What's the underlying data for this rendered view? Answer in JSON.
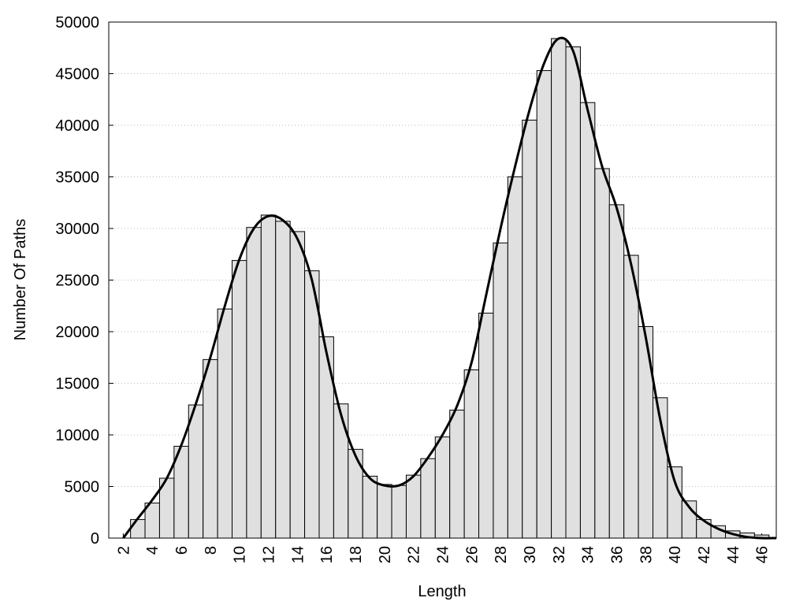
{
  "chart_data": {
    "type": "histogram",
    "xlabel": "Length",
    "ylabel": "Number Of Paths",
    "bins": [
      2.5,
      3.5,
      4.5,
      5.5,
      6.5,
      7.5,
      8.5,
      9.5,
      10.5,
      11.5,
      12.5,
      13.5,
      14.5,
      15.5,
      16.5,
      17.5,
      18.5,
      19.5,
      20.5,
      21.5,
      22.5,
      23.5,
      24.5,
      25.5,
      26.5,
      27.5,
      28.5,
      29.5,
      30.5,
      31.5,
      32.5,
      33.5,
      34.5,
      35.5,
      36.5,
      37.5,
      38.5,
      39.5,
      40.5,
      41.5,
      42.5,
      43.5,
      44.5,
      45.5,
      46.5
    ],
    "values": [
      1800,
      3400,
      5800,
      8900,
      12900,
      17300,
      22200,
      26900,
      30100,
      31300,
      30700,
      29700,
      25900,
      19500,
      13000,
      8600,
      6000,
      5200,
      5100,
      6100,
      7700,
      9800,
      12400,
      16300,
      21800,
      28600,
      35000,
      40500,
      45300,
      48400,
      47600,
      42200,
      35800,
      32300,
      27400,
      20500,
      13600,
      6900,
      3600,
      1800,
      1200,
      700,
      500,
      300
    ],
    "color": "#e0e0e0",
    "line": {
      "color": "#000000",
      "x": [
        2,
        3,
        4,
        5,
        6,
        7,
        8,
        9,
        10,
        11,
        12,
        13,
        14,
        15,
        16,
        17,
        18,
        19,
        20,
        21,
        22,
        23,
        24,
        25,
        26,
        27,
        28,
        29,
        30,
        31,
        32,
        33,
        34,
        35,
        36,
        37,
        38,
        39,
        40,
        41,
        42,
        43,
        44,
        45,
        46,
        47
      ],
      "values": [
        0,
        1900,
        3700,
        5800,
        9000,
        13000,
        17500,
        22500,
        27000,
        30000,
        31200,
        30800,
        29000,
        25000,
        18000,
        12000,
        8000,
        5800,
        5100,
        5100,
        6000,
        7800,
        10000,
        12800,
        17000,
        23500,
        30000,
        36000,
        41500,
        46000,
        48400,
        47200,
        41500,
        36000,
        32000,
        26500,
        19500,
        11500,
        5500,
        3000,
        1700,
        900,
        400,
        100,
        0,
        0
      ]
    },
    "xlim": [
      1,
      47
    ],
    "ylim": [
      0,
      50000
    ],
    "xticks": [
      2,
      4,
      6,
      8,
      10,
      12,
      14,
      16,
      18,
      20,
      22,
      24,
      26,
      28,
      30,
      32,
      34,
      36,
      38,
      40,
      42,
      44,
      46
    ],
    "yticks": [
      0,
      5000,
      10000,
      15000,
      20000,
      25000,
      30000,
      35000,
      40000,
      45000,
      50000
    ],
    "grid": true
  }
}
